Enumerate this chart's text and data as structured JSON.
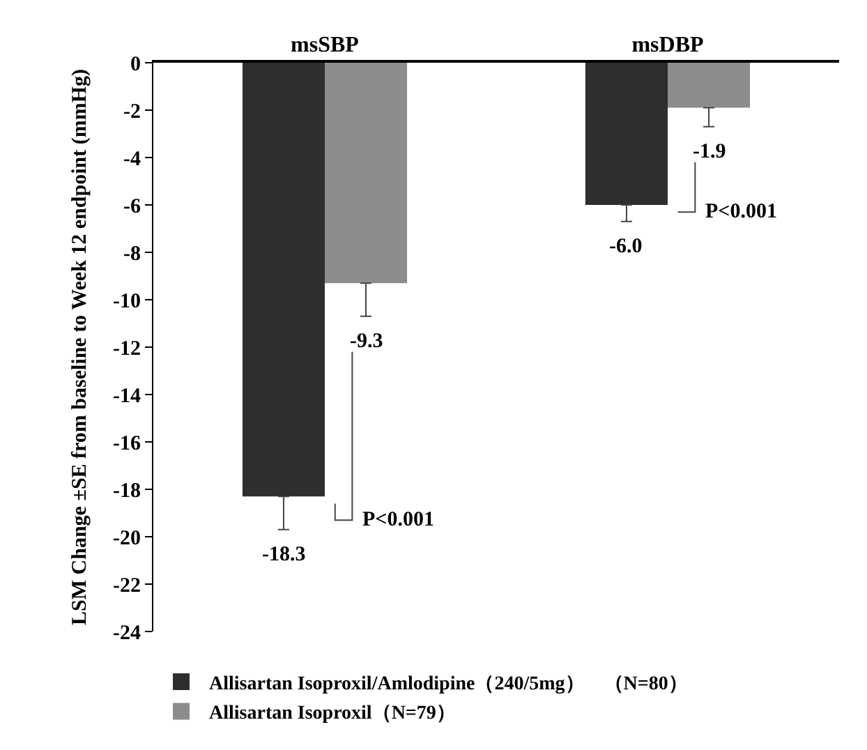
{
  "chart_data": {
    "type": "bar",
    "ylabel": "LSM Change ±SE from baseline to Week 12 endpoint (mmHg)",
    "categories": [
      "msSBP",
      "msDBP"
    ],
    "series": [
      {
        "name": "Allisartan Isoproxil/Amlodipine（240/5mg）　（N=80）",
        "color": "#2e2e2e",
        "values": [
          -18.3,
          -6.0
        ],
        "errors": [
          [
            -19.7,
            -18.3
          ],
          [
            -6.7,
            -6.0
          ]
        ],
        "value_labels": [
          "-18.3",
          "-6.0"
        ]
      },
      {
        "name": "Allisartan Isoproxil（N=79）",
        "color": "#8c8c8c",
        "values": [
          -9.3,
          -1.9
        ],
        "errors": [
          [
            -10.7,
            -9.3
          ],
          [
            -2.7,
            -1.9
          ]
        ],
        "value_labels": [
          "-9.3",
          "-1.9"
        ]
      }
    ],
    "ylim": [
      -24,
      0
    ],
    "yticks": [
      -24,
      -22,
      -20,
      -18,
      -16,
      -14,
      -12,
      -10,
      -8,
      -6,
      -4,
      -2,
      0
    ],
    "legend": "bottom",
    "annotations": [
      "P<0.001",
      "P<0.001"
    ]
  }
}
